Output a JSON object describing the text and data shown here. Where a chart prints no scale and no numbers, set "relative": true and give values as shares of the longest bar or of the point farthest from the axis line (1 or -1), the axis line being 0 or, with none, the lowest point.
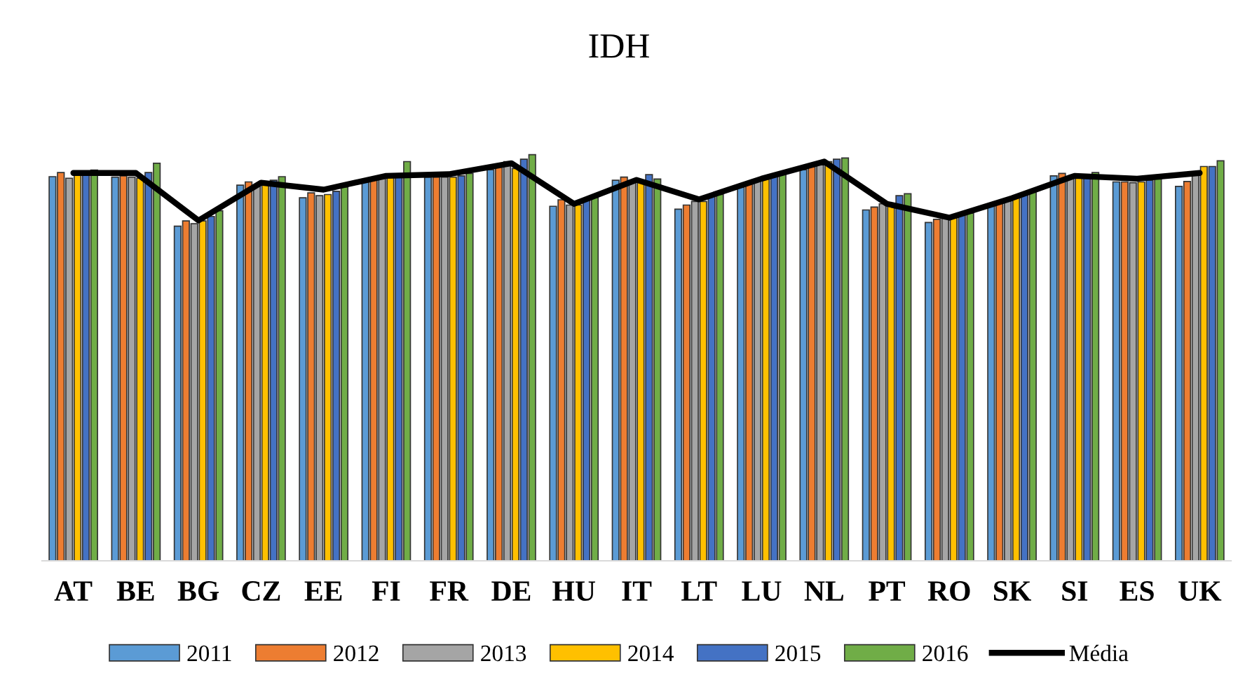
{
  "chart_data": {
    "type": "bar",
    "title": "IDH",
    "relative": true,
    "legend": "bottom",
    "grid": false,
    "categories": [
      "AT",
      "BE",
      "BG",
      "CZ",
      "EE",
      "FI",
      "FR",
      "DE",
      "HU",
      "IT",
      "LT",
      "LU",
      "NL",
      "PT",
      "RO",
      "SK",
      "SI",
      "ES",
      "UK"
    ],
    "series": [
      {
        "name": "2011",
        "color": "#5b9bd5",
        "values": [
          0.946,
          0.945,
          0.824,
          0.925,
          0.894,
          0.937,
          0.945,
          0.963,
          0.873,
          0.937,
          0.866,
          0.92,
          0.963,
          0.864,
          0.833,
          0.873,
          0.948,
          0.933,
          0.922
        ]
      },
      {
        "name": "2012",
        "color": "#ed7d31",
        "values": [
          0.956,
          0.948,
          0.837,
          0.933,
          0.906,
          0.942,
          0.945,
          0.971,
          0.889,
          0.945,
          0.876,
          0.928,
          0.971,
          0.871,
          0.841,
          0.883,
          0.954,
          0.933,
          0.934
        ]
      },
      {
        "name": "2013",
        "color": "#a5a5a5",
        "values": [
          0.942,
          0.945,
          0.83,
          0.925,
          0.899,
          0.942,
          0.945,
          0.983,
          0.876,
          0.937,
          0.885,
          0.937,
          0.977,
          0.879,
          0.845,
          0.891,
          0.942,
          0.931,
          0.954
        ]
      },
      {
        "name": "2014",
        "color": "#ffc000",
        "values": [
          0.952,
          0.942,
          0.837,
          0.933,
          0.902,
          0.945,
          0.945,
          0.966,
          0.876,
          0.933,
          0.885,
          0.942,
          0.983,
          0.873,
          0.845,
          0.894,
          0.942,
          0.933,
          0.971
        ]
      },
      {
        "name": "2015",
        "color": "#4472c4",
        "values": [
          0.956,
          0.956,
          0.848,
          0.937,
          0.91,
          0.952,
          0.948,
          0.989,
          0.887,
          0.951,
          0.897,
          0.948,
          0.989,
          0.899,
          0.851,
          0.902,
          0.948,
          0.937,
          0.971
        ]
      },
      {
        "name": "2016",
        "color": "#70ad47",
        "values": [
          0.962,
          0.979,
          0.862,
          0.946,
          0.92,
          0.983,
          0.954,
          1.0,
          0.894,
          0.94,
          0.902,
          0.954,
          0.992,
          0.904,
          0.856,
          0.908,
          0.956,
          0.94,
          0.985
        ]
      },
      {
        "name": "Média",
        "type": "line",
        "color": "#000000",
        "values": [
          0.955,
          0.955,
          0.838,
          0.931,
          0.914,
          0.948,
          0.952,
          0.979,
          0.879,
          0.938,
          0.89,
          0.941,
          0.983,
          0.879,
          0.845,
          0.893,
          0.948,
          0.941,
          0.955
        ]
      }
    ]
  }
}
